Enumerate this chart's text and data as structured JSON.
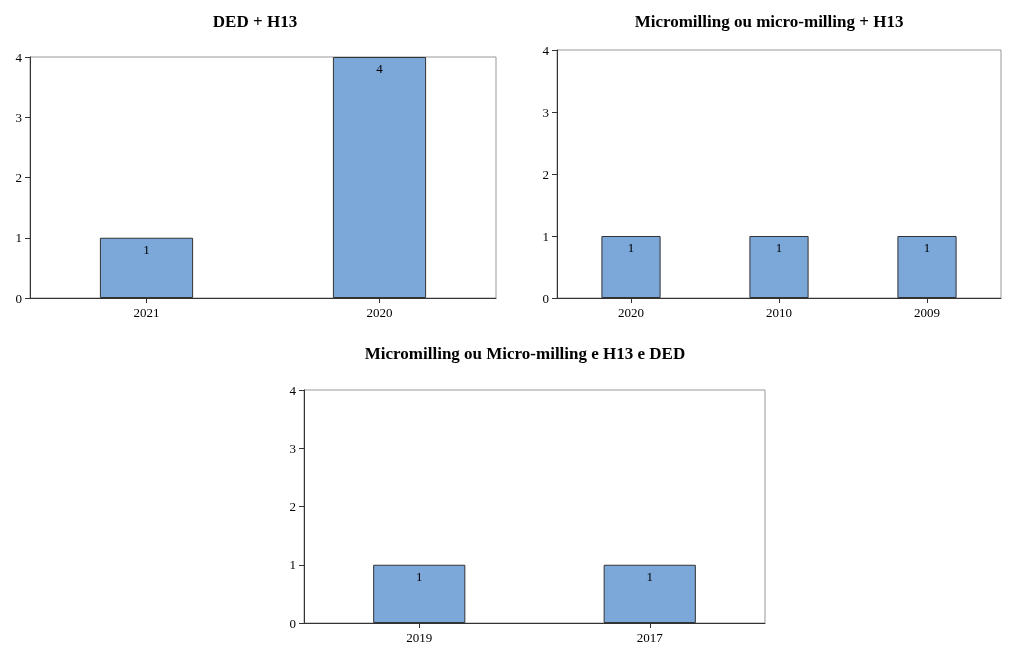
{
  "chart_data": [
    {
      "type": "bar",
      "title": "DED + H13",
      "categories": [
        "2021",
        "2020"
      ],
      "values": [
        1,
        4
      ],
      "color": "#7ba7d9",
      "ylim": [
        0,
        4
      ],
      "yticks": [
        0,
        1,
        2,
        3,
        4
      ],
      "grid": false,
      "data_labels": true
    },
    {
      "type": "bar",
      "title": "Micromilling ou micro-milling + H13",
      "categories": [
        "2020",
        "2010",
        "2009"
      ],
      "values": [
        1,
        1,
        1
      ],
      "color": "#7ba7d9",
      "ylim": [
        0,
        4
      ],
      "yticks": [
        0,
        1,
        2,
        3,
        4
      ],
      "grid": false,
      "data_labels": true
    },
    {
      "type": "bar",
      "title": "Micromilling ou Micro-milling e H13 e DED",
      "categories": [
        "2019",
        "2017"
      ],
      "values": [
        1,
        1
      ],
      "color": "#7ba7d9",
      "ylim": [
        0,
        4
      ],
      "yticks": [
        0,
        1,
        2,
        3,
        4
      ],
      "grid": false,
      "data_labels": true
    }
  ]
}
